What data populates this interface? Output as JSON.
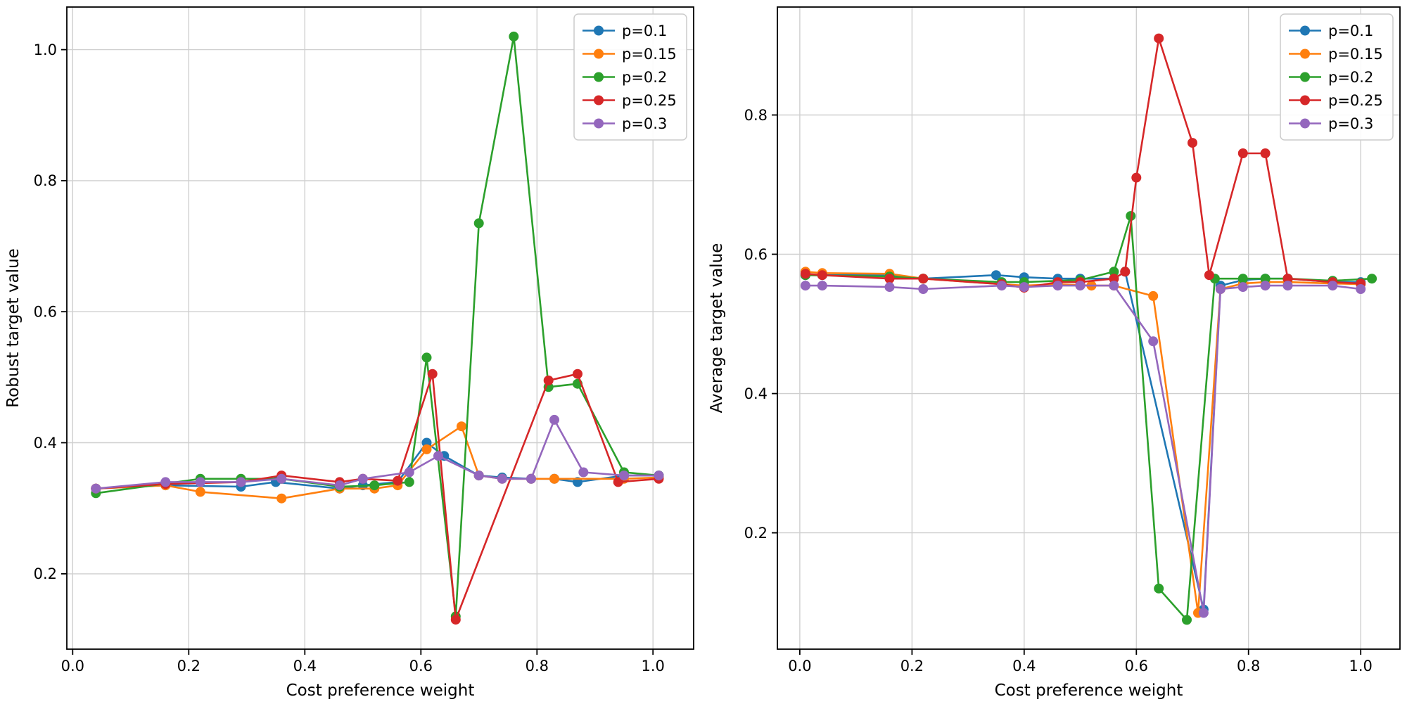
{
  "figure": {
    "background": "#ffffff",
    "grid_color": "#cfcfcf",
    "spine_color": "#000000"
  },
  "chart_data": [
    {
      "type": "line",
      "title": "",
      "xlabel": "Cost preference weight",
      "ylabel": "Robust target value",
      "xlim": [
        -0.01,
        1.07
      ],
      "ylim": [
        0.085,
        1.065
      ],
      "xticks": [
        0.0,
        0.2,
        0.4,
        0.6,
        0.8,
        1.0
      ],
      "yticks": [
        0.2,
        0.4,
        0.6,
        0.8,
        1.0
      ],
      "grid": true,
      "legend_position": "upper right",
      "series": [
        {
          "name": "p=0.1",
          "color": "#1f77b4",
          "x": [
            0.04,
            0.16,
            0.29,
            0.35,
            0.46,
            0.5,
            0.56,
            0.61,
            0.64,
            0.7,
            0.74,
            0.79,
            0.83,
            0.87,
            0.95,
            1.01
          ],
          "y": [
            0.33,
            0.335,
            0.333,
            0.34,
            0.33,
            0.335,
            0.34,
            0.4,
            0.38,
            0.35,
            0.347,
            0.345,
            0.345,
            0.34,
            0.35,
            0.35
          ]
        },
        {
          "name": "p=0.15",
          "color": "#ff7f0e",
          "x": [
            0.04,
            0.16,
            0.22,
            0.36,
            0.46,
            0.52,
            0.56,
            0.61,
            0.67,
            0.7,
            0.74,
            0.79,
            0.83,
            0.95,
            1.01
          ],
          "y": [
            0.33,
            0.335,
            0.325,
            0.315,
            0.33,
            0.33,
            0.335,
            0.39,
            0.425,
            0.35,
            0.345,
            0.345,
            0.345,
            0.345,
            0.347
          ]
        },
        {
          "name": "p=0.2",
          "color": "#2ca02c",
          "x": [
            0.04,
            0.22,
            0.29,
            0.36,
            0.46,
            0.52,
            0.58,
            0.61,
            0.66,
            0.7,
            0.76,
            0.82,
            0.87,
            0.95,
            1.01
          ],
          "y": [
            0.323,
            0.345,
            0.345,
            0.345,
            0.333,
            0.335,
            0.34,
            0.53,
            0.135,
            0.735,
            1.02,
            0.485,
            0.49,
            0.355,
            0.35
          ]
        },
        {
          "name": "p=0.25",
          "color": "#d62728",
          "x": [
            0.04,
            0.16,
            0.29,
            0.36,
            0.46,
            0.5,
            0.56,
            0.62,
            0.66,
            0.82,
            0.87,
            0.94,
            1.01
          ],
          "y": [
            0.33,
            0.337,
            0.34,
            0.35,
            0.34,
            0.345,
            0.342,
            0.505,
            0.13,
            0.495,
            0.505,
            0.34,
            0.345
          ]
        },
        {
          "name": "p=0.3",
          "color": "#9467bd",
          "x": [
            0.04,
            0.16,
            0.22,
            0.29,
            0.36,
            0.46,
            0.5,
            0.58,
            0.63,
            0.7,
            0.74,
            0.79,
            0.83,
            0.88,
            0.95,
            1.01
          ],
          "y": [
            0.33,
            0.34,
            0.34,
            0.34,
            0.345,
            0.335,
            0.345,
            0.355,
            0.38,
            0.35,
            0.345,
            0.345,
            0.435,
            0.355,
            0.35,
            0.35
          ]
        }
      ]
    },
    {
      "type": "line",
      "title": "",
      "xlabel": "Cost preference weight",
      "ylabel": "Average target value",
      "xlim": [
        -0.04,
        1.07
      ],
      "ylim": [
        0.033,
        0.955
      ],
      "xticks": [
        0.0,
        0.2,
        0.4,
        0.6,
        0.8,
        1.0
      ],
      "yticks": [
        0.2,
        0.4,
        0.6,
        0.8
      ],
      "grid": true,
      "legend_position": "upper right",
      "series": [
        {
          "name": "p=0.1",
          "color": "#1f77b4",
          "x": [
            0.01,
            0.04,
            0.16,
            0.22,
            0.35,
            0.4,
            0.46,
            0.5,
            0.56,
            0.58,
            0.72,
            0.75,
            0.79,
            0.83,
            0.87,
            0.95,
            1.0
          ],
          "y": [
            0.57,
            0.57,
            0.57,
            0.565,
            0.57,
            0.567,
            0.565,
            0.565,
            0.565,
            0.575,
            0.09,
            0.555,
            0.563,
            0.565,
            0.565,
            0.56,
            0.56
          ]
        },
        {
          "name": "p=0.15",
          "color": "#ff7f0e",
          "x": [
            0.01,
            0.04,
            0.16,
            0.22,
            0.36,
            0.4,
            0.46,
            0.52,
            0.56,
            0.63,
            0.71,
            0.75,
            0.79,
            0.83,
            0.87,
            0.95,
            1.0
          ],
          "y": [
            0.575,
            0.573,
            0.572,
            0.565,
            0.557,
            0.555,
            0.557,
            0.555,
            0.555,
            0.54,
            0.085,
            0.55,
            0.558,
            0.56,
            0.56,
            0.558,
            0.557
          ]
        },
        {
          "name": "p=0.2",
          "color": "#2ca02c",
          "x": [
            0.01,
            0.16,
            0.22,
            0.36,
            0.4,
            0.5,
            0.56,
            0.59,
            0.64,
            0.69,
            0.74,
            0.79,
            0.83,
            0.87,
            0.95,
            1.02
          ],
          "y": [
            0.57,
            0.568,
            0.565,
            0.56,
            0.56,
            0.563,
            0.575,
            0.655,
            0.12,
            0.075,
            0.565,
            0.565,
            0.565,
            0.565,
            0.562,
            0.565
          ]
        },
        {
          "name": "p=0.25",
          "color": "#d62728",
          "x": [
            0.01,
            0.04,
            0.16,
            0.22,
            0.36,
            0.4,
            0.46,
            0.5,
            0.56,
            0.58,
            0.6,
            0.64,
            0.7,
            0.73,
            0.79,
            0.83,
            0.87,
            0.95,
            1.0
          ],
          "y": [
            0.572,
            0.57,
            0.565,
            0.565,
            0.557,
            0.552,
            0.56,
            0.56,
            0.565,
            0.575,
            0.71,
            0.91,
            0.76,
            0.57,
            0.745,
            0.745,
            0.565,
            0.56,
            0.558
          ]
        },
        {
          "name": "p=0.3",
          "color": "#9467bd",
          "x": [
            0.01,
            0.04,
            0.16,
            0.22,
            0.36,
            0.4,
            0.46,
            0.5,
            0.56,
            0.63,
            0.72,
            0.75,
            0.79,
            0.83,
            0.87,
            0.95,
            1.0
          ],
          "y": [
            0.555,
            0.555,
            0.553,
            0.55,
            0.555,
            0.553,
            0.555,
            0.555,
            0.555,
            0.475,
            0.085,
            0.55,
            0.553,
            0.555,
            0.555,
            0.555,
            0.55
          ]
        }
      ]
    }
  ]
}
